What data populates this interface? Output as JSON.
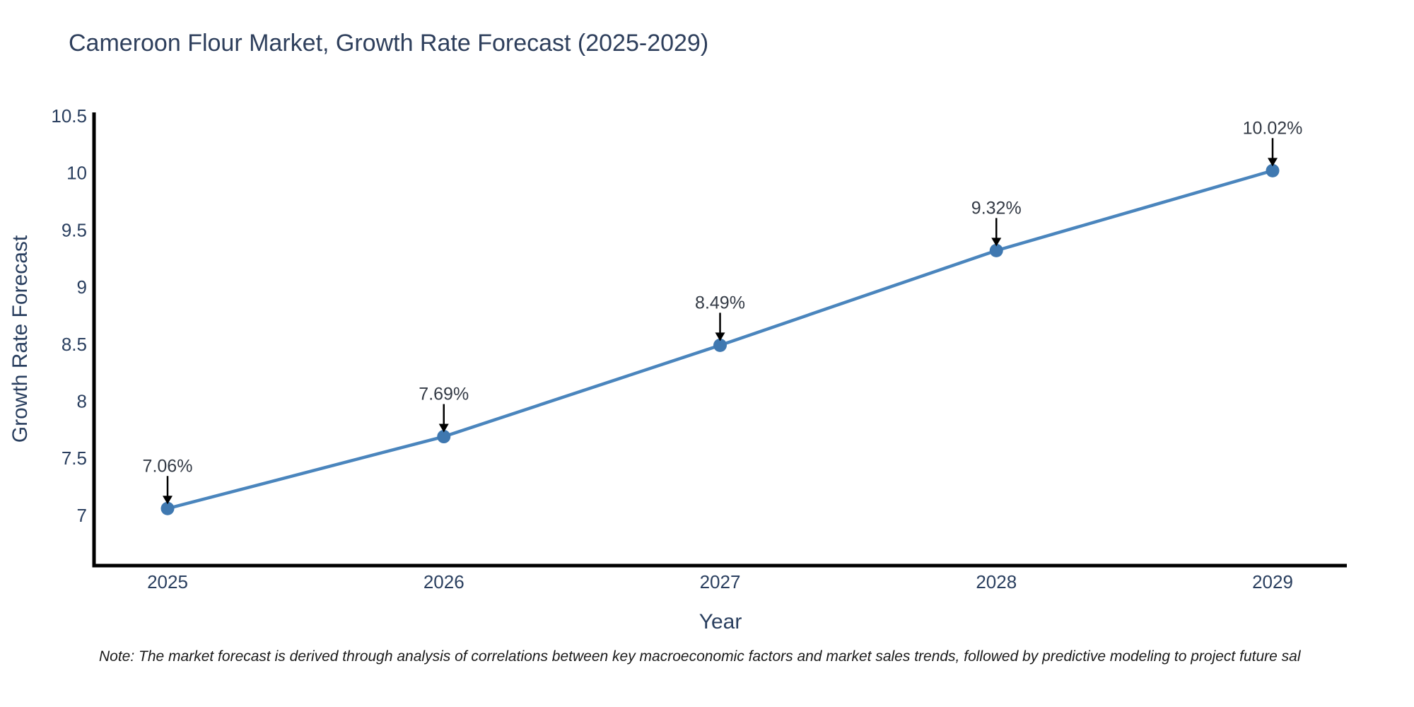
{
  "title": "Cameroon Flour Market, Growth Rate Forecast (2025-2029)",
  "note": "Note: The market forecast is derived through analysis of correlations between key macroeconomic factors and market sales trends, followed by predictive modeling to project future sal",
  "chart_data": {
    "type": "line",
    "title": "Cameroon Flour Market, Growth Rate Forecast (2025-2029)",
    "xlabel": "Year",
    "ylabel": "Growth Rate Forecast",
    "x": [
      2025,
      2026,
      2027,
      2028,
      2029
    ],
    "xtick_labels": [
      "2025",
      "2026",
      "2027",
      "2028",
      "2029"
    ],
    "series": [
      {
        "name": "Growth Rate Forecast",
        "values": [
          7.06,
          7.69,
          8.49,
          9.32,
          10.02
        ]
      }
    ],
    "point_labels": [
      "7.06%",
      "7.69%",
      "8.49%",
      "9.32%",
      "10.02%"
    ],
    "ylim": [
      6.56,
      10.53
    ],
    "yticks": [
      7,
      7.5,
      8,
      8.5,
      9,
      9.5,
      10,
      10.5
    ],
    "ytick_labels": [
      "7",
      "7.5",
      "8",
      "8.5",
      "9",
      "9.5",
      "10",
      "10.5"
    ],
    "grid": false,
    "legend": "none",
    "colors": {
      "line": "#4a85bd",
      "marker": "#3f78b0",
      "axis": "#000000",
      "tick_text": "#2a3f5f",
      "axis_title_text": "#2a3f5f",
      "annotation_text": "#333a45",
      "annotation_arrow": "#000000"
    }
  }
}
